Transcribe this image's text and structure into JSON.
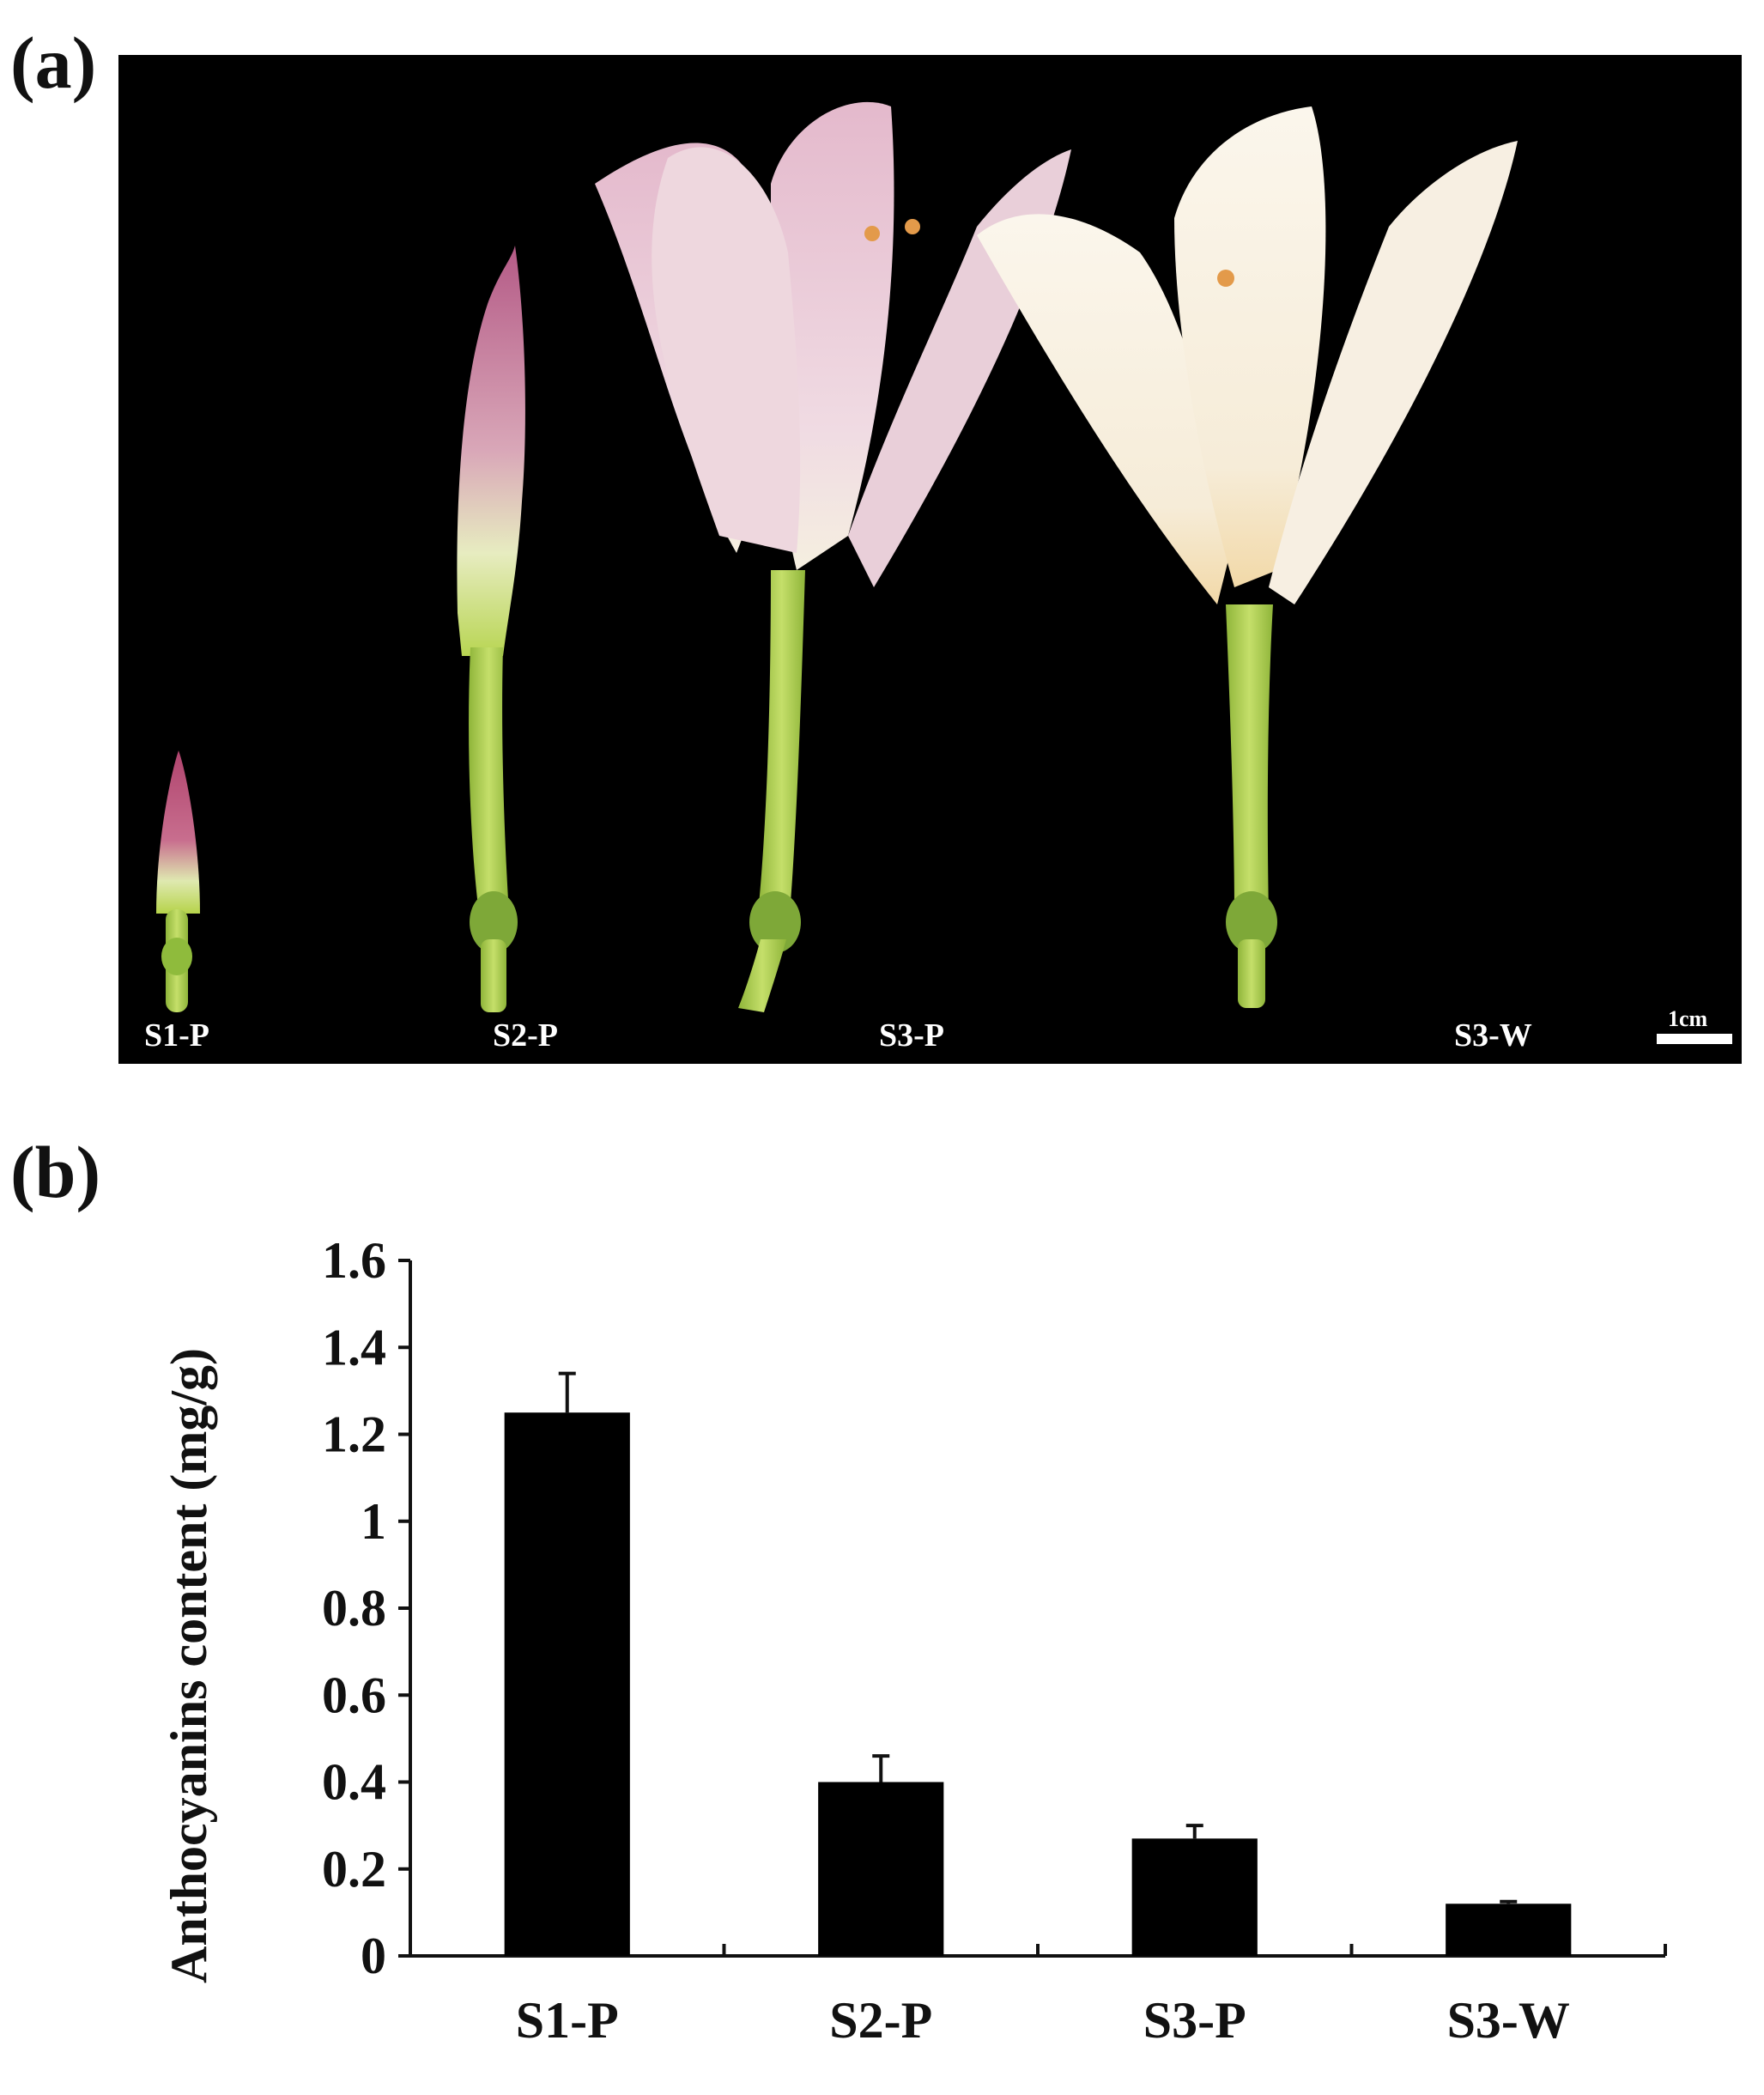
{
  "figure": {
    "panel_a_label": "(a)",
    "panel_b_label": "(b)"
  },
  "photo": {
    "stages": [
      "S1-P",
      "S2-P",
      "S3-P",
      "S3-W"
    ],
    "scale_label": "1cm",
    "background": "#000000"
  },
  "chart_data": {
    "type": "bar",
    "categories": [
      "S1-P",
      "S2-P",
      "S3-P",
      "S3-W"
    ],
    "values": [
      1.25,
      0.4,
      0.27,
      0.12
    ],
    "errors": [
      0.09,
      0.06,
      0.03,
      0.005
    ],
    "ylabel": "Anthocyanins content (mg/g)",
    "xlabel": "",
    "ylim": [
      0,
      1.6
    ],
    "yticks": [
      0,
      0.2,
      0.4,
      0.6,
      0.8,
      1,
      1.2,
      1.4,
      1.6
    ],
    "ytick_labels": [
      "0",
      "0.2",
      "0.4",
      "0.6",
      "0.8",
      "1",
      "1.2",
      "1.4",
      "1.6"
    ],
    "grid": false,
    "bar_color": "#000000"
  }
}
